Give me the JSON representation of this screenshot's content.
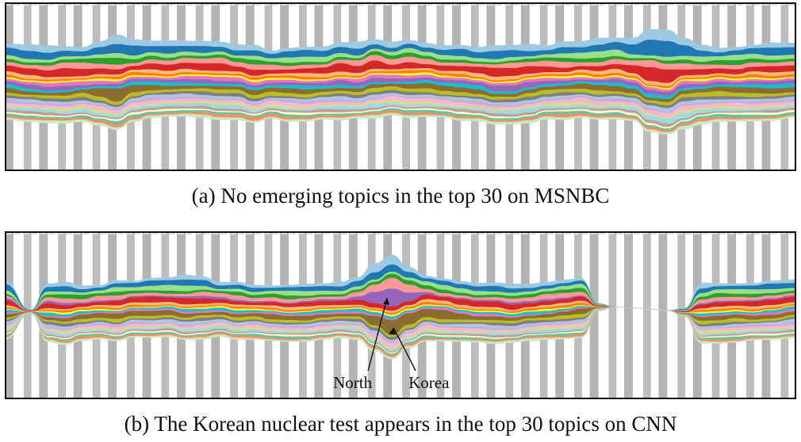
{
  "figure": {
    "caption_a": "(a)  No emerging topics in the top 30 on MSNBC",
    "caption_b": "(b)  The Korean nuclear test appears in the top 30 topics on CNN"
  },
  "chart_data": [
    {
      "type": "area",
      "subtype": "streamgraph",
      "caption": "(a)  No emerging topics in the top 30 on MSNBC",
      "time_bins": 46,
      "background": "alternating grey and white vertical time bands",
      "annotations": [],
      "gap": null,
      "layers": [
        {
          "color": "#9ecae1",
          "thickness": 9,
          "peaks": [
            [
              6,
              2.2
            ],
            [
              34,
              1.6
            ],
            [
              38,
              2.0
            ]
          ]
        },
        {
          "color": "#1f77b4",
          "thickness": 11,
          "peaks": [
            [
              6,
              2.0
            ],
            [
              38,
              2.4
            ],
            [
              33,
              1.3
            ]
          ]
        },
        {
          "color": "#98df8a",
          "thickness": 7,
          "peaks": [
            [
              34,
              1.5
            ],
            [
              40,
              1.4
            ]
          ]
        },
        {
          "color": "#2ca02c",
          "thickness": 6,
          "peaks": [
            [
              6,
              1.4
            ]
          ]
        },
        {
          "color": "#ff9896",
          "thickness": 8,
          "peaks": [
            [
              36,
              1.8
            ]
          ]
        },
        {
          "color": "#d62728",
          "thickness": 11,
          "peaks": [
            [
              37,
              2.2
            ],
            [
              3,
              1.3
            ]
          ]
        },
        {
          "color": "#ffbb78",
          "thickness": 5,
          "peaks": []
        },
        {
          "color": "#ff7f0e",
          "thickness": 4,
          "peaks": []
        },
        {
          "color": "#ffff33",
          "thickness": 3,
          "peaks": []
        },
        {
          "color": "#e377c2",
          "thickness": 5,
          "peaks": []
        },
        {
          "color": "#9467bd",
          "thickness": 6,
          "peaks": [
            [
              29,
              1.3
            ]
          ]
        },
        {
          "color": "#17becf",
          "thickness": 5,
          "peaks": []
        },
        {
          "color": "#8c6d31",
          "thickness": 7,
          "peaks": [
            [
              6,
              2.4
            ]
          ]
        },
        {
          "color": "#bcbd22",
          "thickness": 6,
          "peaks": []
        },
        {
          "color": "#7f7f7f",
          "thickness": 5,
          "peaks": []
        },
        {
          "color": "#aec7e8",
          "thickness": 4,
          "peaks": [
            [
              40,
              1.6
            ]
          ]
        },
        {
          "color": "#c5b0d5",
          "thickness": 4,
          "peaks": []
        },
        {
          "color": "#f7b6d2",
          "thickness": 5,
          "peaks": [
            [
              38,
              2.0
            ]
          ]
        },
        {
          "color": "#dbdb8d",
          "thickness": 4,
          "peaks": []
        },
        {
          "color": "#9edae5",
          "thickness": 5,
          "peaks": [
            [
              38,
              1.8
            ]
          ]
        },
        {
          "color": "#c49c94",
          "thickness": 4,
          "peaks": []
        },
        {
          "color": "#ffffcc",
          "thickness": 3,
          "peaks": []
        },
        {
          "color": "#66c2a5",
          "thickness": 4,
          "peaks": []
        },
        {
          "color": "#fc8d62",
          "thickness": 4,
          "peaks": []
        },
        {
          "color": "#c7e9c0",
          "thickness": 4,
          "peaks": []
        }
      ]
    },
    {
      "type": "area",
      "subtype": "streamgraph",
      "caption": "(b)  The Korean nuclear test appears in the top 30 topics on CNN",
      "time_bins": 46,
      "background": "alternating grey and white vertical time bands",
      "gap": [
        35,
        38
      ],
      "pinch": [
        1
      ],
      "annotations": [
        {
          "text": "North",
          "points_to": "purple layer",
          "time_index": 21.5
        },
        {
          "text": "Korea",
          "points_to": "olive layer",
          "time_index": 22.3
        }
      ],
      "layers": [
        {
          "color": "#9ecae1",
          "thickness": 8,
          "peaks": [
            [
              22,
              2.5
            ],
            [
              39,
              2.2
            ]
          ]
        },
        {
          "color": "#1f77b4",
          "thickness": 11,
          "peaks": [
            [
              22,
              1.8
            ],
            [
              39,
              1.8
            ]
          ]
        },
        {
          "color": "#98df8a",
          "thickness": 8,
          "peaks": [
            [
              10,
              1.5
            ],
            [
              39,
              2.0
            ]
          ]
        },
        {
          "color": "#2ca02c",
          "thickness": 7,
          "peaks": [
            [
              3,
              1.4
            ]
          ]
        },
        {
          "color": "#ff9896",
          "thickness": 8,
          "peaks": [
            [
              22,
              2.2
            ]
          ]
        },
        {
          "color": "#9467bd",
          "thickness": 4,
          "peaks": [
            [
              22,
              9.0
            ]
          ]
        },
        {
          "color": "#d62728",
          "thickness": 10,
          "peaks": [
            [
              39,
              1.6
            ]
          ]
        },
        {
          "color": "#ffbb78",
          "thickness": 5,
          "peaks": []
        },
        {
          "color": "#ff7f0e",
          "thickness": 4,
          "peaks": []
        },
        {
          "color": "#ffff33",
          "thickness": 3,
          "peaks": []
        },
        {
          "color": "#17becf",
          "thickness": 5,
          "peaks": []
        },
        {
          "color": "#e377c2",
          "thickness": 4,
          "peaks": []
        },
        {
          "color": "#8c6d31",
          "thickness": 9,
          "peaks": [
            [
              22,
              4.5
            ],
            [
              25,
              2.0
            ]
          ]
        },
        {
          "color": "#bcbd22",
          "thickness": 6,
          "peaks": []
        },
        {
          "color": "#7f7f7f",
          "thickness": 5,
          "peaks": []
        },
        {
          "color": "#aec7e8",
          "thickness": 5,
          "peaks": []
        },
        {
          "color": "#c5b0d5",
          "thickness": 4,
          "peaks": []
        },
        {
          "color": "#f7b6d2",
          "thickness": 5,
          "peaks": [
            [
              22,
              2.0
            ]
          ]
        },
        {
          "color": "#dbdb8d",
          "thickness": 4,
          "peaks": []
        },
        {
          "color": "#9edae5",
          "thickness": 5,
          "peaks": []
        },
        {
          "color": "#c49c94",
          "thickness": 4,
          "peaks": []
        },
        {
          "color": "#ffffcc",
          "thickness": 3,
          "peaks": []
        },
        {
          "color": "#66c2a5",
          "thickness": 4,
          "peaks": []
        },
        {
          "color": "#fc8d62",
          "thickness": 4,
          "peaks": []
        },
        {
          "color": "#c7e9c0",
          "thickness": 4,
          "peaks": []
        }
      ]
    }
  ]
}
